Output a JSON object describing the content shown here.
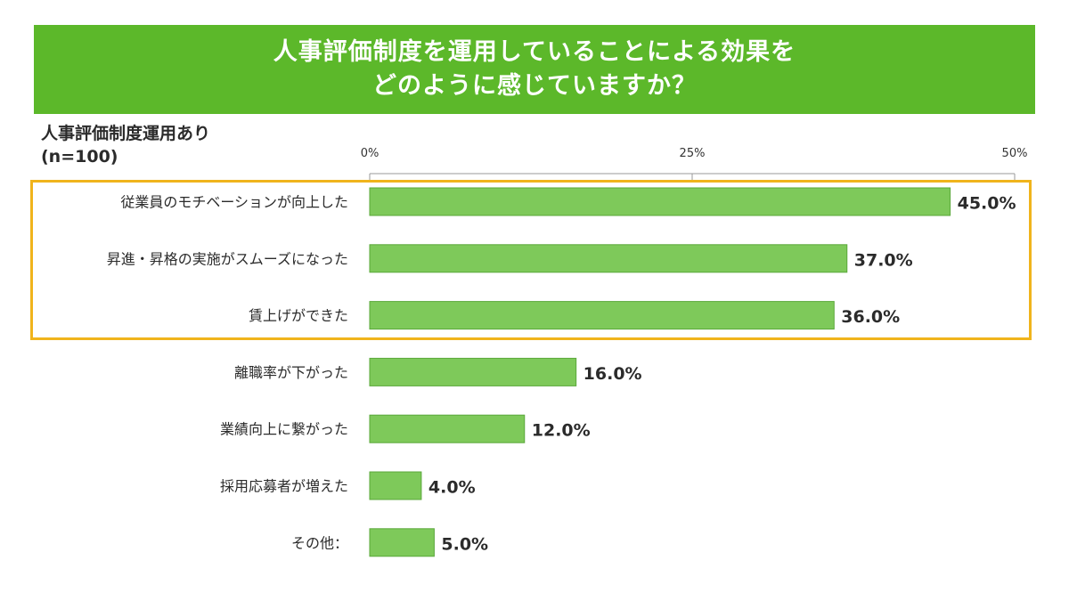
{
  "title": {
    "line1": "人事評価制度を運用していることによる効果を",
    "line2": "どのように感じていますか？"
  },
  "group_label": {
    "line1": "人事評価制度運用あり",
    "line2": "(n=100)"
  },
  "colors": {
    "banner": "#5cb82a",
    "bar": "#7ec95a",
    "bar_border": "#5aa83a",
    "highlight": "#f0b41c"
  },
  "chart_data": {
    "type": "bar",
    "orientation": "horizontal",
    "categories": [
      "従業員のモチベーションが向上した",
      "昇進・昇格の実施がスムーズになった",
      "賃上げができた",
      "離職率が下がった",
      "業績向上に繋がった",
      "採用応募者が増えた",
      "その他："
    ],
    "values": [
      45.0,
      37.0,
      36.0,
      16.0,
      12.0,
      4.0,
      5.0
    ],
    "value_labels": [
      "45.0%",
      "37.0%",
      "36.0%",
      "16.0%",
      "12.0%",
      "4.0%",
      "5.0%"
    ],
    "xlim": [
      0,
      50
    ],
    "tick_values": [
      0,
      25,
      50
    ],
    "tick_labels": [
      "0%",
      "25%",
      "50%"
    ],
    "highlighted_categories": [
      0,
      1,
      2
    ]
  }
}
